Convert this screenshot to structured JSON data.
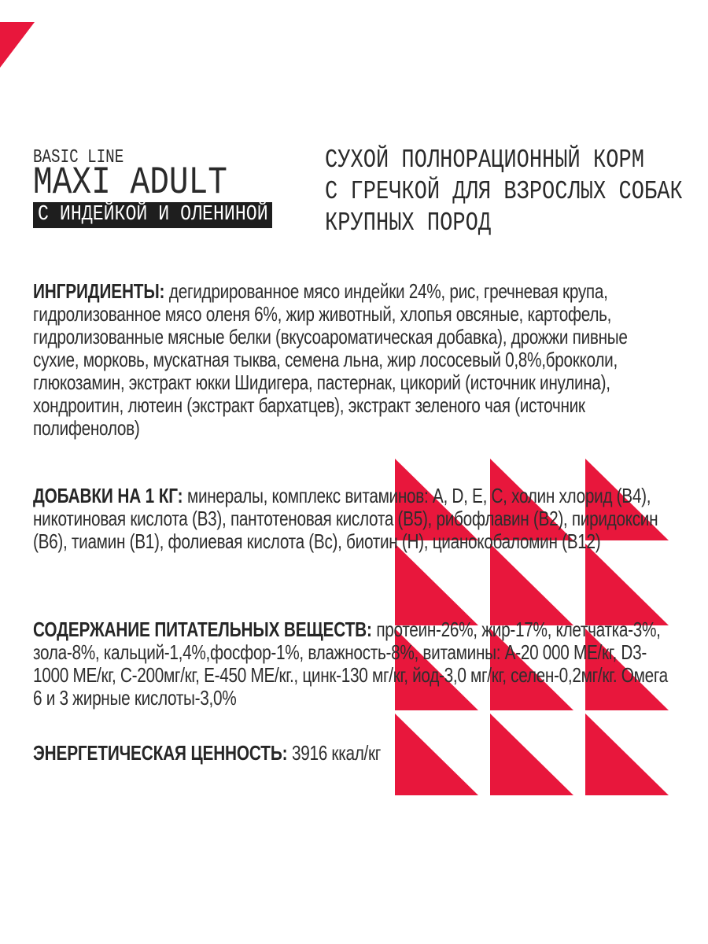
{
  "page": {
    "accent_red": "#e8173c",
    "bar_black": "#1e1e1e",
    "background": "#ffffff",
    "text_color": "#2e2e2e"
  },
  "header": {
    "series_label": "BASIC LINE",
    "product_name": "MAXI ADULT",
    "flavor_bar": "С ИНДЕЙКОЙ И ОЛЕНИНОЙ",
    "description_lines": [
      "СУХОЙ ПОЛНОРАЦИОННЫЙ КОРМ",
      "С ГРЕЧКОЙ ДЛЯ ВЗРОСЛЫХ СОБАК",
      "КРУПНЫХ ПОРОД"
    ]
  },
  "sections": {
    "ingredients": {
      "label": "ИНГРИДИЕНТЫ:",
      "text": "дегидрированное мясо индейки 24%, рис, гречневая крупа, гидролизованное мясо оленя 6%, жир животный, хлопья овсяные, картофель, гидролизованные мясные белки (вкусоароматическая добавка), дрожжи пивные сухие, морковь, мускатная тыква, семена льна, жир лососевый 0,8%,брокколи, глюкозамин, экстракт юкки Шидигера, пастернак, цикорий (источник инулина), хондроитин, лютеин (экстракт бархатцев), экстракт зеленого чая (источник полифенолов)"
    },
    "additives": {
      "label": "ДОБАВКИ НА 1 КГ:",
      "text": "минералы, комплекс витаминов: А, D, Е, С, холин хлорид (В4), никотиновая кислота (В3), пантотеновая кислота (В5), рибофлавин (В2), пиридоксин (В6), тиамин (В1), фолиевая кислота (Вс), биотин (Н), цианокобаломин (В12)"
    },
    "nutrition": {
      "label": "СОДЕРЖАНИЕ ПИТАТЕЛЬНЫХ ВЕЩЕСТВ:",
      "text": "протеин-26%, жир-17%, клетчатка-3%, зола-8%, кальций-1,4%,фосфор-1%, влажность-8%, витамины: А-20 000 МЕ/кг, D3-1000 МЕ/кг, С-200мг/кг, Е-450 МЕ/кг., цинк-130 мг/кг, йод-3,0 мг/кг, селен-0,2мг/кг. Омега 6 и 3 жирные кислоты-3,0%"
    },
    "energy": {
      "label": "ЭНЕРГЕТИЧЕСКАЯ ЦЕННОСТЬ:",
      "value": "3916 ккал/кг"
    }
  },
  "decor": {
    "pattern_rows": 4,
    "pattern_cols": 3,
    "triangle_color": "#e8173c"
  }
}
